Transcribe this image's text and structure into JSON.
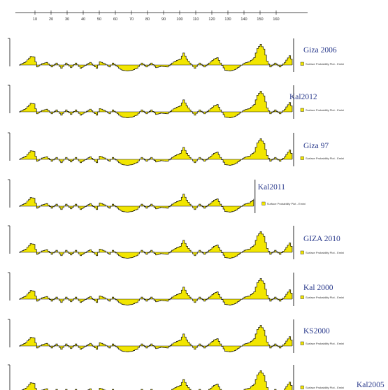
{
  "chart_data": {
    "type": "area",
    "x_ticks": [
      10,
      20,
      30,
      40,
      50,
      60,
      70,
      80,
      90,
      100,
      110,
      120,
      130,
      140,
      150,
      160
    ],
    "xlim": [
      0,
      170
    ],
    "fill_color": "#f2e600",
    "line_color": "#111111",
    "label_color": "#2a3a8c",
    "legend_label": "Surface Probability Plot - Emini",
    "series": [
      {
        "name": "Giza 2006",
        "x_max": 170
      },
      {
        "name": "Kal2012",
        "x_max": 170
      },
      {
        "name": "Giza 97",
        "x_max": 170
      },
      {
        "name": "Kal2011",
        "x_max": 146
      },
      {
        "name": "GIZA 2010",
        "x_max": 170
      },
      {
        "name": "Kal 2000",
        "x_max": 170
      },
      {
        "name": "KS2000",
        "x_max": 170
      },
      {
        "name": "Kal2005",
        "x_max": 170
      }
    ],
    "grid": false
  }
}
